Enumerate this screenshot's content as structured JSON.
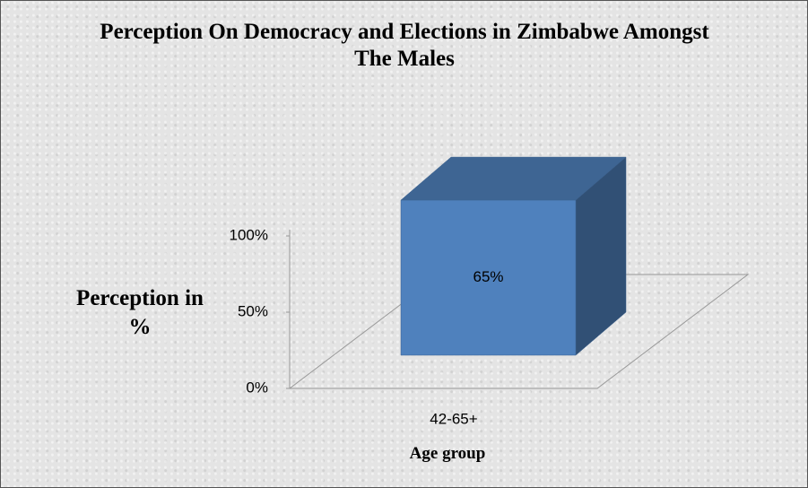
{
  "chart_data": {
    "type": "bar3d",
    "title": "Perception On Democracy and Elections in Zimbabwe Amongst The Males",
    "y_label": "Perception in %",
    "x_label": "Age group",
    "categories": [
      "42-65+"
    ],
    "values": [
      65
    ],
    "value_labels": [
      "65%"
    ],
    "color": "#4f81bd",
    "ylim": [
      0,
      100
    ],
    "yticks": [
      {
        "value": 0,
        "label": "0%"
      },
      {
        "value": 50,
        "label": "50%"
      },
      {
        "value": 100,
        "label": "100%"
      }
    ]
  }
}
